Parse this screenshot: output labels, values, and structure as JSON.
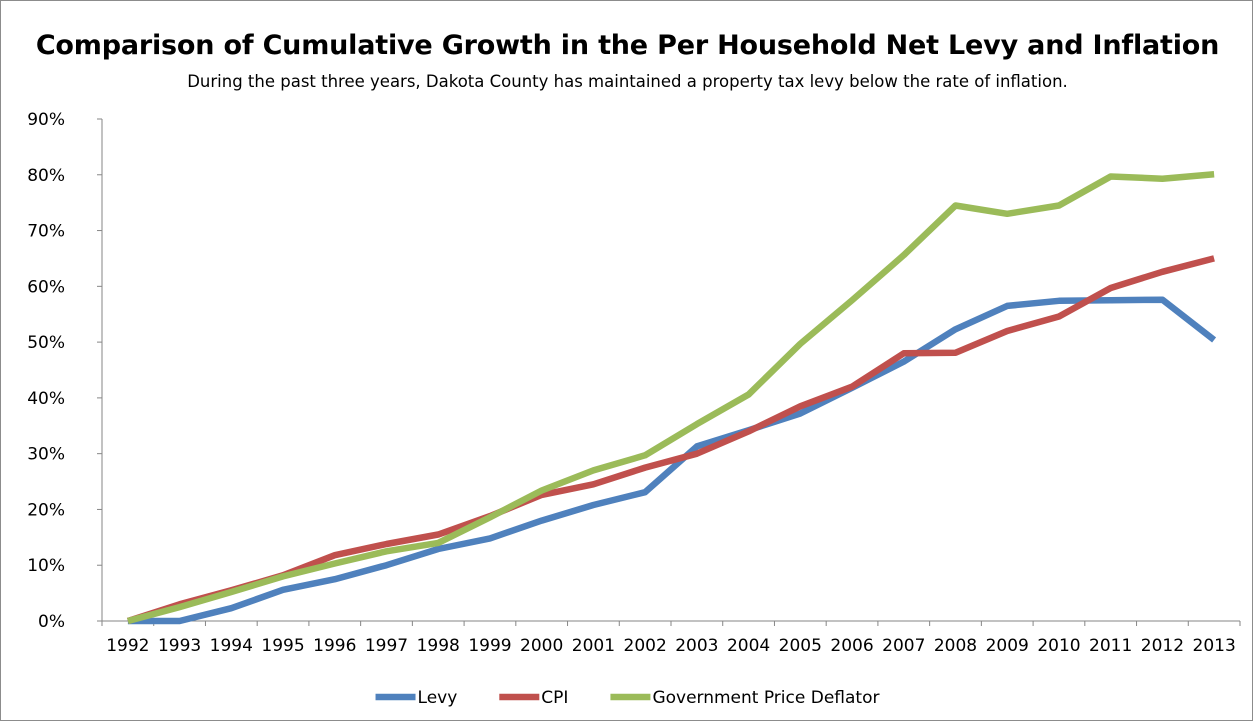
{
  "chart_data": {
    "type": "line",
    "title": "Comparison of Cumulative Growth in the Per Household Net Levy and Inflation",
    "subtitle": "During the past three years, Dakota County has maintained a property tax levy below the rate of inflation.",
    "xlabel": "",
    "ylabel": "",
    "x": [
      "1992",
      "1993",
      "1994",
      "1995",
      "1996",
      "1997",
      "1998",
      "1999",
      "2000",
      "2001",
      "2002",
      "2003",
      "2004",
      "2005",
      "2006",
      "2007",
      "2008",
      "2009",
      "2010",
      "2011",
      "2012",
      "2013"
    ],
    "ylim": [
      0,
      90
    ],
    "yticks": [
      "0%",
      "10%",
      "20%",
      "30%",
      "40%",
      "50%",
      "60%",
      "70%",
      "80%",
      "90%"
    ],
    "grid": false,
    "legend_position": "bottom",
    "series": [
      {
        "name": "Levy",
        "color": "#4f81bd",
        "values": [
          0,
          0,
          2.3,
          5.6,
          7.5,
          10,
          12.9,
          14.8,
          18,
          20.8,
          23.1,
          31.3,
          34.2,
          37.2,
          41.8,
          46.5,
          52.3,
          56.5,
          57.4,
          57.5,
          57.6,
          50.4
        ]
      },
      {
        "name": "CPI",
        "color": "#c0504d",
        "values": [
          0,
          3,
          5.5,
          8.2,
          11.8,
          13.8,
          15.5,
          18.8,
          22.6,
          24.5,
          27.5,
          30,
          34,
          38.5,
          42,
          48,
          48.1,
          52,
          54.6,
          59.7,
          62.6,
          65
        ]
      },
      {
        "name": "Government Price Deflator",
        "color": "#9bbb59",
        "values": [
          0,
          2.5,
          5.2,
          8,
          10.3,
          12.5,
          14,
          18.6,
          23.4,
          27,
          29.7,
          35.3,
          40.6,
          49.7,
          57.5,
          65.6,
          74.5,
          73,
          74.5,
          79.7,
          79.3,
          80.1
        ]
      }
    ]
  }
}
